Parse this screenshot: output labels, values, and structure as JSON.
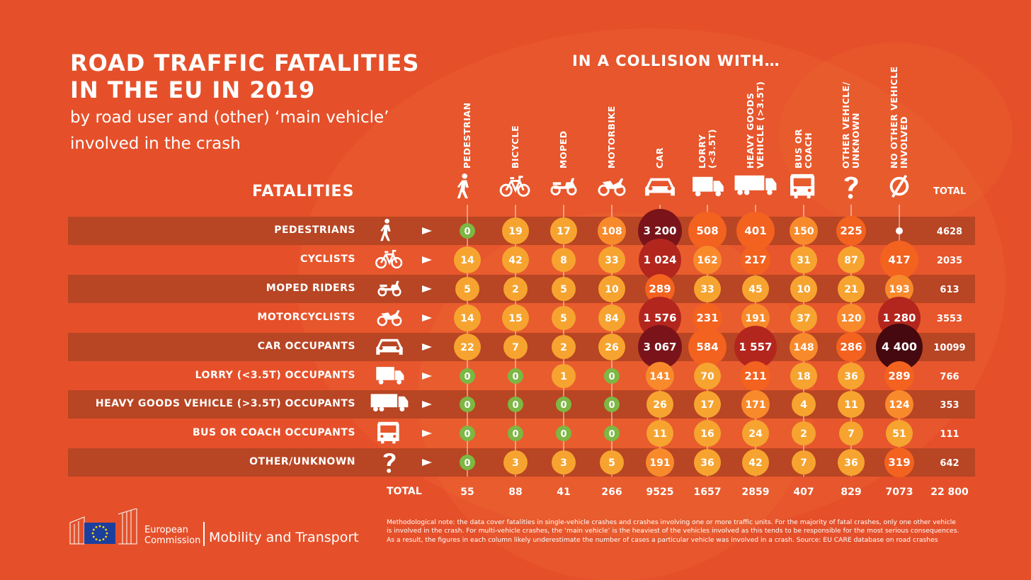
{
  "title_lines": [
    "ROAD TRAFFIC FATALITIES",
    "IN THE EU IN 2019"
  ],
  "subtitle": "by road user and (other) ‘main vehicle’ involved in the crash",
  "collision_heading": "IN A COLLISION WITH…",
  "fatalities_heading": "FATALITIES",
  "total_label": "TOTAL",
  "colors": {
    "background": "#e5502a",
    "band": "#b84523",
    "zero": "#7cb843",
    "scale": [
      "#f6a42f",
      "#f98a2c",
      "#f3621f",
      "#b3261e",
      "#7a141a",
      "#45090f"
    ]
  },
  "chart_data": {
    "type": "table",
    "columns": [
      {
        "label_lines": [
          "PEDESTRIAN"
        ],
        "icon": "pedestrian-icon"
      },
      {
        "label_lines": [
          "BICYCLE"
        ],
        "icon": "bicycle-icon"
      },
      {
        "label_lines": [
          "MOPED"
        ],
        "icon": "moped-icon"
      },
      {
        "label_lines": [
          "MOTORBIKE"
        ],
        "icon": "motorbike-icon"
      },
      {
        "label_lines": [
          "CAR"
        ],
        "icon": "car-icon"
      },
      {
        "label_lines": [
          "LORRY",
          "(<3.5T)"
        ],
        "icon": "lorry-icon"
      },
      {
        "label_lines": [
          "HEAVY GOODS",
          "VEHICLE (>3.5T)"
        ],
        "icon": "heavy-goods-vehicle-icon"
      },
      {
        "label_lines": [
          "BUS OR",
          "COACH"
        ],
        "icon": "bus-icon"
      },
      {
        "label_lines": [
          "OTHER VEHICLE/",
          "UNKNOWN"
        ],
        "icon": "question-icon"
      },
      {
        "label_lines": [
          "NO OTHER VEHICLE",
          "INVOLVED"
        ],
        "icon": "empty-set-icon"
      }
    ],
    "rows": [
      {
        "label": "PEDESTRIANS",
        "icon": "pedestrian-icon",
        "values": [
          0,
          19,
          17,
          108,
          3200,
          508,
          401,
          150,
          225,
          null
        ],
        "display": [
          "0",
          "19",
          "17",
          "108",
          "3 200",
          "508",
          "401",
          "150",
          "225",
          ""
        ],
        "total": "4628"
      },
      {
        "label": "CYCLISTS",
        "icon": "bicycle-icon",
        "values": [
          14,
          42,
          8,
          33,
          1024,
          162,
          217,
          31,
          87,
          417
        ],
        "display": [
          "14",
          "42",
          "8",
          "33",
          "1 024",
          "162",
          "217",
          "31",
          "87",
          "417"
        ],
        "total": "2035"
      },
      {
        "label": "MOPED RIDERS",
        "icon": "moped-icon",
        "values": [
          5,
          2,
          5,
          10,
          289,
          33,
          45,
          10,
          21,
          193
        ],
        "display": [
          "5",
          "2",
          "5",
          "10",
          "289",
          "33",
          "45",
          "10",
          "21",
          "193"
        ],
        "total": "613"
      },
      {
        "label": "MOTORCYCLISTS",
        "icon": "motorbike-icon",
        "values": [
          14,
          15,
          5,
          84,
          1576,
          231,
          191,
          37,
          120,
          1280
        ],
        "display": [
          "14",
          "15",
          "5",
          "84",
          "1 576",
          "231",
          "191",
          "37",
          "120",
          "1 280"
        ],
        "total": "3553"
      },
      {
        "label": "CAR OCCUPANTS",
        "icon": "car-icon",
        "values": [
          22,
          7,
          2,
          26,
          3067,
          584,
          1557,
          148,
          286,
          4400
        ],
        "display": [
          "22",
          "7",
          "2",
          "26",
          "3 067",
          "584",
          "1 557",
          "148",
          "286",
          "4 400"
        ],
        "total": "10099"
      },
      {
        "label": "LORRY (<3.5T) OCCUPANTS",
        "icon": "lorry-icon",
        "values": [
          0,
          0,
          1,
          0,
          141,
          70,
          211,
          18,
          36,
          289
        ],
        "display": [
          "0",
          "0",
          "1",
          "0",
          "141",
          "70",
          "211",
          "18",
          "36",
          "289"
        ],
        "total": "766"
      },
      {
        "label": "HEAVY GOODS VEHICLE (>3.5T) OCCUPANTS",
        "icon": "heavy-goods-vehicle-icon",
        "values": [
          0,
          0,
          0,
          0,
          26,
          17,
          171,
          4,
          11,
          124
        ],
        "display": [
          "0",
          "0",
          "0",
          "0",
          "26",
          "17",
          "171",
          "4",
          "11",
          "124"
        ],
        "total": "353"
      },
      {
        "label": "BUS OR COACH OCCUPANTS",
        "icon": "bus-icon",
        "values": [
          0,
          0,
          0,
          0,
          11,
          16,
          24,
          2,
          7,
          51
        ],
        "display": [
          "0",
          "0",
          "0",
          "0",
          "11",
          "16",
          "24",
          "2",
          "7",
          "51"
        ],
        "total": "111"
      },
      {
        "label": "OTHER/UNKNOWN",
        "icon": "question-icon",
        "values": [
          0,
          3,
          3,
          5,
          191,
          36,
          42,
          7,
          36,
          319
        ],
        "display": [
          "0",
          "3",
          "3",
          "5",
          "191",
          "36",
          "42",
          "7",
          "36",
          "319"
        ],
        "total": "642"
      }
    ],
    "column_totals": [
      "55",
      "88",
      "41",
      "266",
      "9525",
      "1657",
      "2859",
      "407",
      "829",
      "7073"
    ],
    "grand_total": "22 800"
  },
  "footer": {
    "org_line1": "European",
    "org_line2": "Commission",
    "department": "Mobility and Transport",
    "note": "Methodological note: the data cover fatalities in single-vehicle crashes and crashes involving one or more traffic units. For the majority of fatal crashes, only one other vehicle is involved in the crash. For multi-vehicle crashes, the ‘main vehicle’ is the heaviest of the vehicles involved as this tends to be responsible for the most serious consequences. As a result, the figures in each column likely underestimate the number of cases a particular vehicle was involved in a crash. Source: EU CARE database on road crashes"
  }
}
